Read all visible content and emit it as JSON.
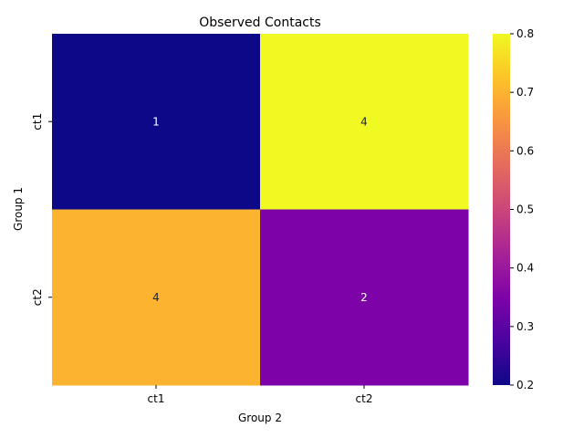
{
  "chart_data": {
    "type": "heatmap",
    "title": "Observed Contacts",
    "xlabel": "Group 2",
    "ylabel": "Group 1",
    "x_categories": [
      "ct1",
      "ct2"
    ],
    "y_categories": [
      "ct1",
      "ct2"
    ],
    "cells": [
      [
        {
          "row": "ct1",
          "col": "ct1",
          "annotation": "1",
          "color_value": 0.2
        },
        {
          "row": "ct1",
          "col": "ct2",
          "annotation": "4",
          "color_value": 0.8
        }
      ],
      [
        {
          "row": "ct2",
          "col": "ct1",
          "annotation": "4",
          "color_value": 0.7
        },
        {
          "row": "ct2",
          "col": "ct2",
          "annotation": "2",
          "color_value": 0.35
        }
      ]
    ],
    "colorbar": {
      "colormap": "plasma",
      "range": [
        0.2,
        0.8
      ],
      "ticks": [
        "0.2",
        "0.3",
        "0.4",
        "0.5",
        "0.6",
        "0.7",
        "0.8"
      ]
    },
    "grid": false,
    "legend": "colorbar-right"
  }
}
